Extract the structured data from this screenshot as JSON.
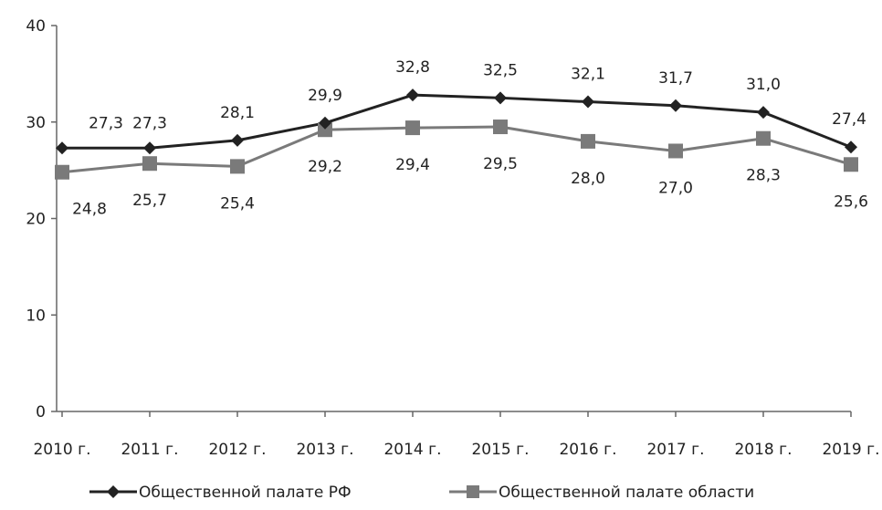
{
  "chart_data": {
    "type": "line",
    "categories": [
      "2010 г.",
      "2011 г.",
      "2012 г.",
      "2013 г.",
      "2014 г.",
      "2015 г.",
      "2016 г.",
      "2017 г.",
      "2018 г.",
      "2019 г."
    ],
    "series": [
      {
        "name": "Общественной палате РФ",
        "values": [
          27.3,
          27.3,
          28.1,
          29.9,
          32.8,
          32.5,
          32.1,
          31.7,
          31.0,
          27.4
        ],
        "labels": [
          "27,3",
          "27,3",
          "28,1",
          "29,9",
          "32,8",
          "32,5",
          "32,1",
          "31,7",
          "31,0",
          "27,4"
        ],
        "marker": "diamond",
        "color": "#222222"
      },
      {
        "name": "Общественной палате области",
        "values": [
          24.8,
          25.7,
          25.4,
          29.2,
          29.4,
          29.5,
          28.0,
          27.0,
          28.3,
          25.6
        ],
        "labels": [
          "24,8",
          "25,7",
          "25,4",
          "29,2",
          "29,4",
          "29,5",
          "28,0",
          "27,0",
          "28,3",
          "25,6"
        ],
        "marker": "square",
        "color": "#7a7a7a"
      }
    ],
    "ylim": [
      0,
      40
    ],
    "yticks": [
      "0",
      "10",
      "20",
      "30",
      "40"
    ],
    "grid": false,
    "legend_position": "bottom"
  }
}
